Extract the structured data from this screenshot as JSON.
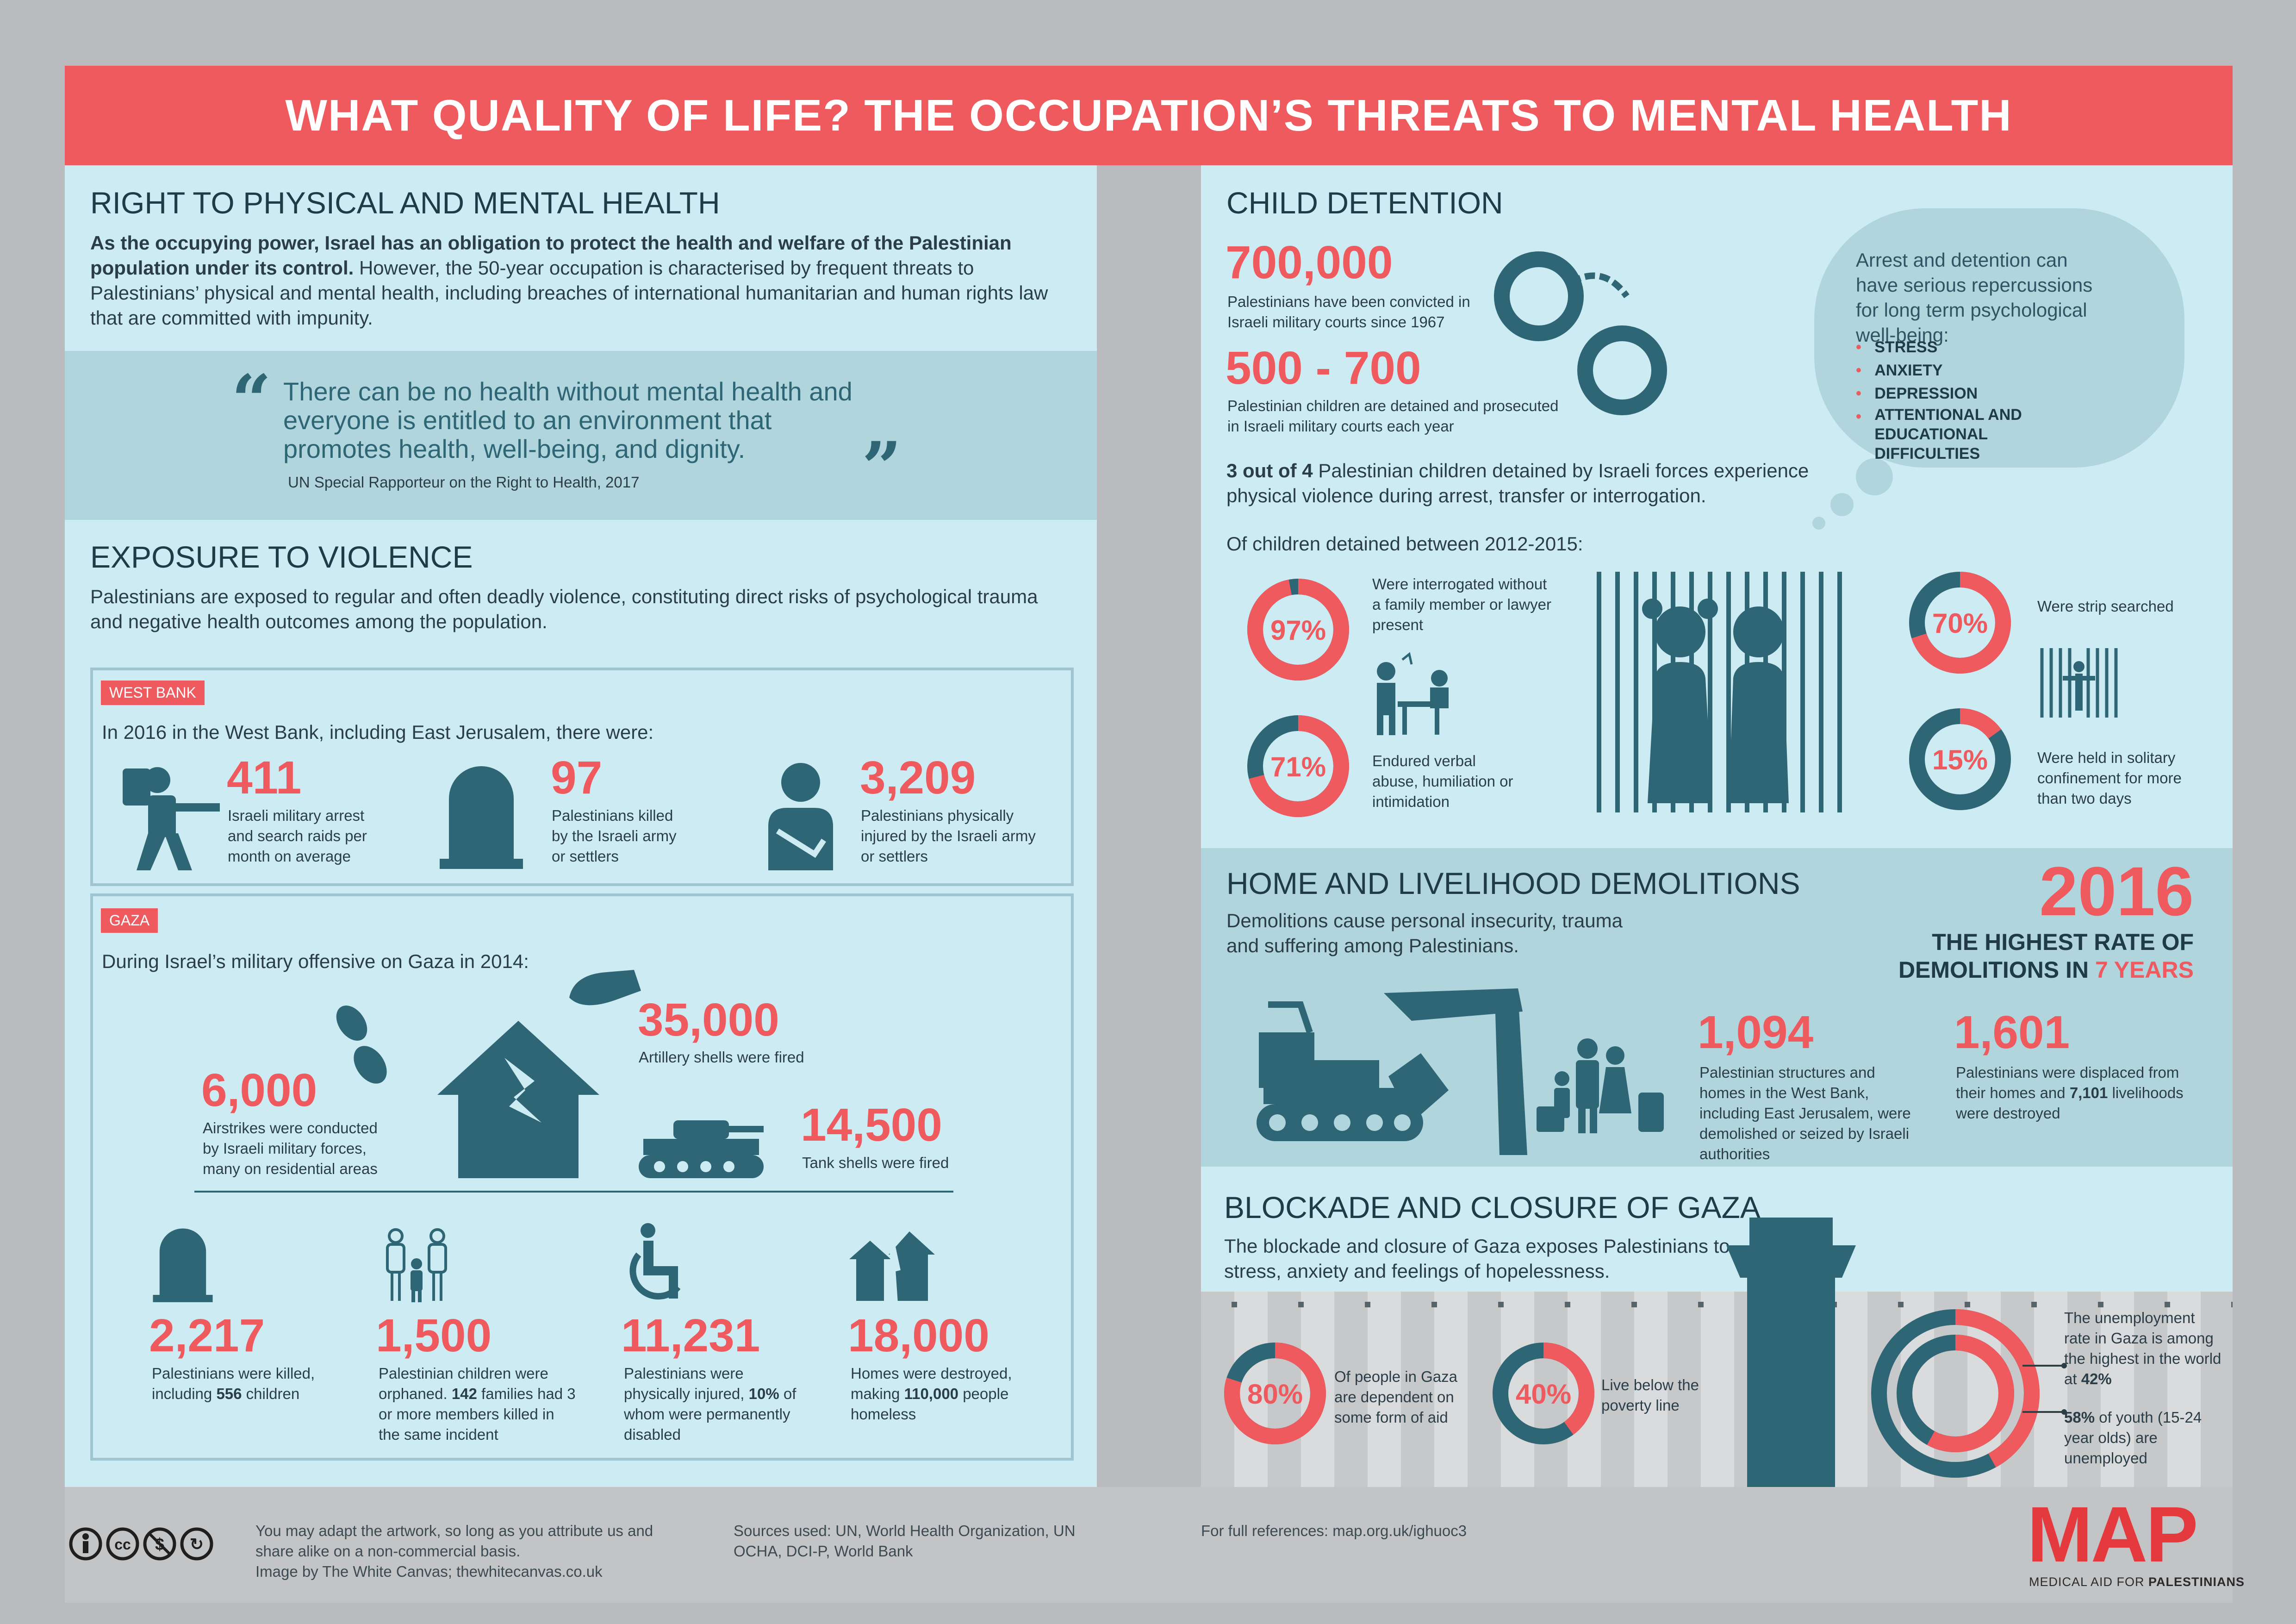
{
  "header": {
    "title": "WHAT QUALITY OF LIFE? THE OCCUPATION’S THREATS TO MENTAL HEALTH"
  },
  "left": {
    "right_to_health": {
      "heading": "RIGHT TO PHYSICAL AND MENTAL HEALTH",
      "bold_intro": "As the occupying power, Israel has an obligation to protect the health and welfare of the Palestinian population under its control.",
      "body": " However, the 50-year occupation is characterised by frequent threats to Palestinians’ physical and mental health, including breaches of international humanitarian and human rights law that are committed with impunity."
    },
    "quote": {
      "text": "There can be no health without mental health and everyone is entitled to an environment that promotes health, well-being, and dignity.",
      "source": "UN Special Rapporteur on the Right to Health, 2017"
    },
    "violence": {
      "heading": "EXPOSURE TO VIOLENCE",
      "body": "Palestinians are exposed to regular and often deadly violence, constituting direct risks of psychological trauma and negative health outcomes among the population.",
      "west_bank": {
        "tag": "WEST BANK",
        "intro": "In 2016 in the West Bank, including East Jerusalem, there were:",
        "stats": [
          {
            "value": "411",
            "label": "Israeli military arrest and search raids per month on average",
            "icon": "soldier-icon"
          },
          {
            "value": "97",
            "label": "Palestinians killed by the Israeli army or settlers",
            "icon": "gravestone-icon"
          },
          {
            "value": "3,209",
            "label": "Palestinians physically injured by the Israeli army or settlers",
            "icon": "injured-person-icon"
          }
        ]
      },
      "gaza": {
        "tag": "GAZA",
        "intro": "During Israel’s military offensive on Gaza in 2014:",
        "airstrikes": {
          "value": "6,000",
          "label": "Airstrikes were conducted by Israeli military forces, many on residential areas"
        },
        "artillery": {
          "value": "35,000",
          "label": "Artillery shells were fired"
        },
        "tank": {
          "value": "14,500",
          "label": "Tank shells were fired"
        },
        "bottom": [
          {
            "value": "2,217",
            "label_a": "Palestinians were killed, including ",
            "bold": "556",
            "label_b": " children"
          },
          {
            "value": "1,500",
            "label_a": "Palestinian children were orphaned. ",
            "bold": "142",
            "label_b": " families had 3 or more members killed in the same incident"
          },
          {
            "value": "11,231",
            "label_a": "Palestinians were physically injured, ",
            "bold": "10%",
            "label_b": " of whom were permanently disabled"
          },
          {
            "value": "18,000",
            "label_a": "Homes were destroyed, making ",
            "bold": "110,000",
            "label_b": " people homeless"
          }
        ]
      }
    }
  },
  "right": {
    "child_detention": {
      "heading": "CHILD DETENTION",
      "stat1": {
        "value": "700,000",
        "label": "Palestinians have been convicted in Israeli military courts since 1967"
      },
      "stat2": {
        "value": "500 - 700",
        "label": "Palestinian children are detained and prosecuted in Israeli military courts each year"
      },
      "cloud": {
        "text": "Arrest and detention can have serious repercussions for long term psychological well-being:",
        "items": [
          "STRESS",
          "ANXIETY",
          "DEPRESSION",
          "ATTENTIONAL AND EDUCATIONAL DIFFICULTIES"
        ]
      },
      "three_of_four_bold": "3 out of 4",
      "three_of_four": " Palestinian children detained by Israeli forces experience physical violence during arrest, transfer or interrogation.",
      "of_children": "Of children detained between 2012-2015:",
      "donuts": [
        {
          "value": 97,
          "text": "97%",
          "label": "Were interrogated without a family member or lawyer present"
        },
        {
          "value": 71,
          "text": "71%",
          "label": "Endured verbal abuse, humiliation or intimidation"
        },
        {
          "value": 70,
          "text": "70%",
          "label": "Were strip searched"
        },
        {
          "value": 15,
          "text": "15%",
          "label": "Were held in solitary confinement for more than two days"
        }
      ]
    },
    "demolitions": {
      "heading": "HOME AND LIVELIHOOD DEMOLITIONS",
      "body": "Demolitions cause personal insecurity, trauma and suffering among Palestinians.",
      "year": "2016",
      "highest_a": "THE HIGHEST RATE OF",
      "highest_b": "DEMOLITIONS IN ",
      "highest_c": "7 YEARS",
      "stat1": {
        "value": "1,094",
        "label": "Palestinian structures and homes in the West Bank, including East Jerusalem, were demolished or seized by Israeli authorities"
      },
      "stat2": {
        "value": "1,601",
        "label_a": "Palestinians were displaced from their homes and ",
        "bold": "7,101",
        "label_b": " livelihoods were destroyed"
      }
    },
    "blockade": {
      "heading": "BLOCKADE AND CLOSURE OF GAZA",
      "body": "The blockade and closure of Gaza exposes Palestinians to stress, anxiety and feelings of hopelessness.",
      "donuts": [
        {
          "value": 80,
          "text": "80%",
          "label": "Of people in Gaza are dependent on some form of aid"
        },
        {
          "value": 40,
          "text": "40%",
          "label": "Live below the poverty line"
        }
      ],
      "unemployment": {
        "value": 42,
        "text_a": "The unemployment rate in Gaza is among the highest in the world at ",
        "bold": "42%"
      },
      "youth": {
        "value": 58,
        "bold": "58%",
        "text_b": " of youth (15-24 year olds) are unemployed"
      }
    }
  },
  "footer": {
    "license": "You may adapt the artwork, so long as you attribute us and share alike on a non-commercial basis.",
    "credit": "Image by The White Canvas; thewhitecanvas.co.uk",
    "sources": "Sources used: UN, World Health Organization, UN OCHA, DCI-P, World Bank",
    "references": "For full references: map.org.uk/ighuoc3",
    "logo_text": "MAP",
    "logo_sub_a": "MEDICAL AID FOR ",
    "logo_sub_b": "PALESTINIANS"
  },
  "colors": {
    "accent": "#ee5a5e",
    "dark": "#2e6676",
    "panel": "#cdebf3",
    "band": "#b1d5dc"
  }
}
